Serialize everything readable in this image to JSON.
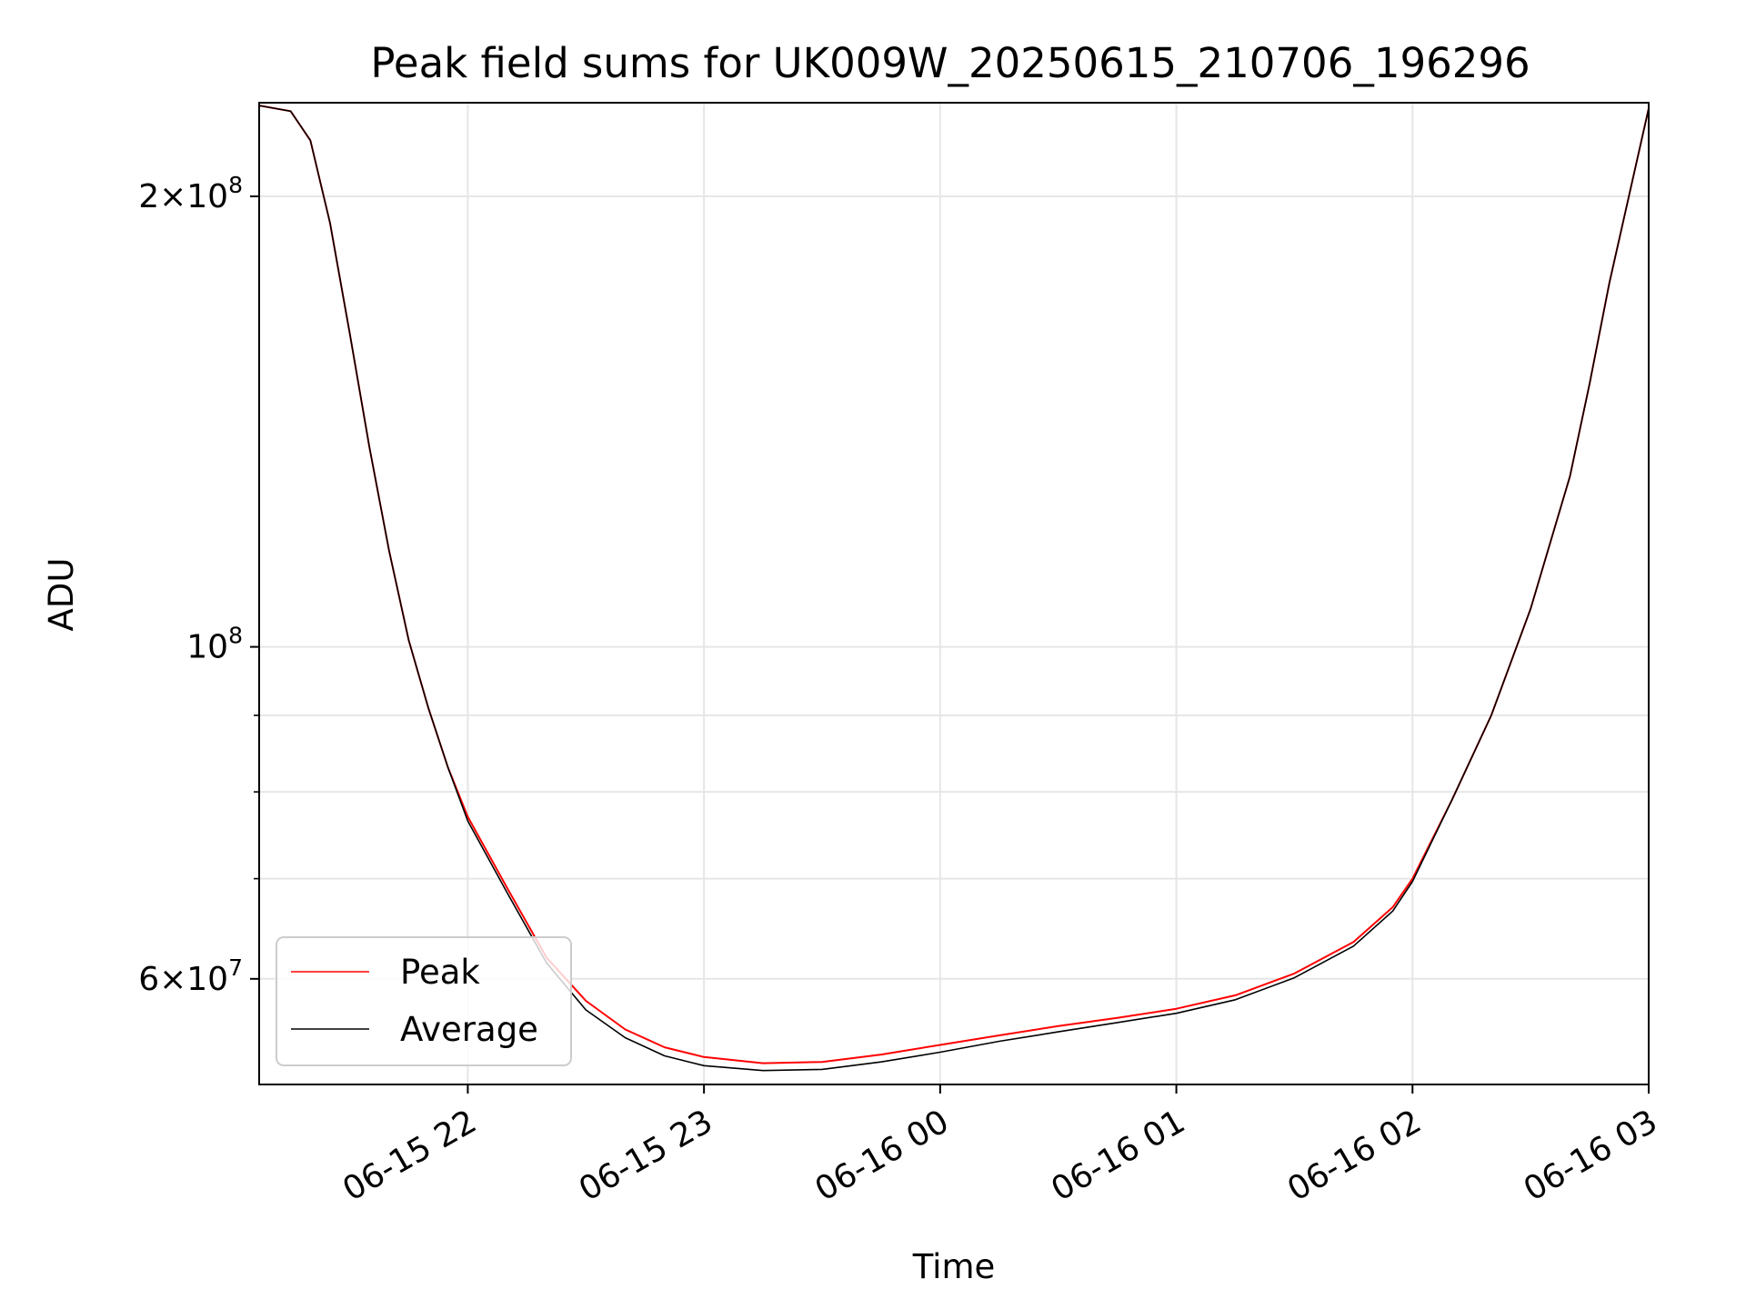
{
  "chart_data": {
    "type": "line",
    "title": "Peak field sums for UK009W_20250615_210706_196296",
    "xlabel": "Time",
    "ylabel": "ADU",
    "x_ticks": [
      "06-15 22",
      "06-15 23",
      "06-16 00",
      "06-16 01",
      "06-16 02",
      "06-16 03"
    ],
    "y_ticks": [
      {
        "value": 200000000,
        "mantissa": "2",
        "exp": "8"
      },
      {
        "value": 100000000,
        "mantissa": "",
        "exp": "8"
      },
      {
        "value": 60000000,
        "mantissa": "6",
        "exp": "7"
      }
    ],
    "x_range": [
      "2025-06-15 21:07",
      "2025-06-16 03:00"
    ],
    "y_range": [
      51000000,
      231000000
    ],
    "y_scale": "log",
    "grid": true,
    "legend_position": "lower-left",
    "x": [
      "2025-06-15 21:07",
      "2025-06-15 21:15",
      "2025-06-15 21:20",
      "2025-06-15 21:25",
      "2025-06-15 21:30",
      "2025-06-15 21:35",
      "2025-06-15 21:40",
      "2025-06-15 21:45",
      "2025-06-15 21:50",
      "2025-06-15 21:55",
      "2025-06-15 22:00",
      "2025-06-15 22:10",
      "2025-06-15 22:20",
      "2025-06-15 22:30",
      "2025-06-15 22:40",
      "2025-06-15 22:50",
      "2025-06-15 23:00",
      "2025-06-15 23:15",
      "2025-06-15 23:30",
      "2025-06-15 23:45",
      "2025-06-16 00:00",
      "2025-06-16 00:15",
      "2025-06-16 00:30",
      "2025-06-16 00:45",
      "2025-06-16 01:00",
      "2025-06-16 01:15",
      "2025-06-16 01:30",
      "2025-06-16 01:45",
      "2025-06-16 01:55",
      "2025-06-16 02:00",
      "2025-06-16 02:10",
      "2025-06-16 02:20",
      "2025-06-16 02:30",
      "2025-06-16 02:40",
      "2025-06-16 02:45",
      "2025-06-16 02:50",
      "2025-06-16 03:00"
    ],
    "series": [
      {
        "name": "Peak",
        "color": "#ff0000",
        "values": [
          230000000,
          228000000,
          218000000,
          192000000,
          162000000,
          136000000,
          116000000,
          101000000,
          91000000,
          83000000,
          77000000,
          69000000,
          62000000,
          58000000,
          55500000,
          54000000,
          53200000,
          52700000,
          52800000,
          53400000,
          54200000,
          55000000,
          55800000,
          56500000,
          57300000,
          58500000,
          60500000,
          63500000,
          67000000,
          70000000,
          79000000,
          90000000,
          106000000,
          130000000,
          150000000,
          175000000,
          229000000
        ]
      },
      {
        "name": "Average",
        "color": "#000000",
        "values": [
          230000000,
          228000000,
          218000000,
          192000000,
          162000000,
          136000000,
          116000000,
          101000000,
          91000000,
          83000000,
          76500000,
          68500000,
          61500000,
          57200000,
          54800000,
          53300000,
          52500000,
          52100000,
          52200000,
          52800000,
          53600000,
          54500000,
          55300000,
          56100000,
          56900000,
          58100000,
          60100000,
          63100000,
          66600000,
          69700000,
          79000000,
          90000000,
          106000000,
          130000000,
          150000000,
          175000000,
          229000000
        ]
      }
    ]
  }
}
